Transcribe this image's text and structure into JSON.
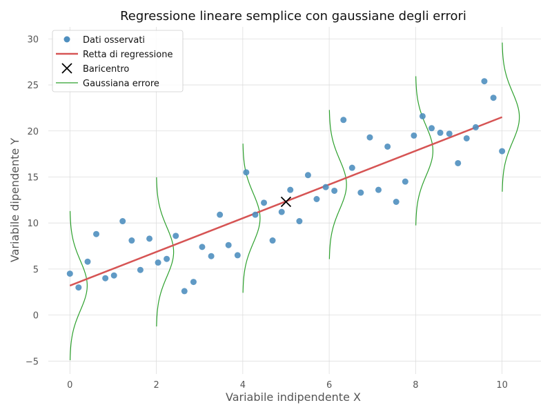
{
  "chart_data": {
    "type": "scatter",
    "title": "Regressione lineare semplice con gaussiane degli errori",
    "xlabel": "Variabile indipendente X",
    "ylabel": "Variabile dipendente Y",
    "xlim": [
      -0.5,
      10.9
    ],
    "ylim": [
      -6.4,
      31.3
    ],
    "xticks": [
      0,
      2,
      4,
      6,
      8,
      10
    ],
    "yticks": [
      -5,
      0,
      5,
      10,
      15,
      20,
      25,
      30
    ],
    "grid": true,
    "legend_position": "top-left",
    "colors": {
      "points": "#4f8fbf",
      "regression": "#d65454",
      "centroid": "#000000",
      "gaussian": "#2ca02c"
    },
    "legend": [
      {
        "label": "Dati osservati",
        "kind": "point"
      },
      {
        "label": "Retta di regressione",
        "kind": "line"
      },
      {
        "label": "Baricentro",
        "kind": "cross"
      },
      {
        "label": "Gaussiana errore",
        "kind": "thin-line"
      }
    ],
    "observed": {
      "name": "Dati osservati",
      "x": [
        0.0,
        0.2,
        0.41,
        0.61,
        0.82,
        1.02,
        1.22,
        1.43,
        1.63,
        1.84,
        2.04,
        2.24,
        2.45,
        2.65,
        2.86,
        3.06,
        3.27,
        3.47,
        3.67,
        3.88,
        4.08,
        4.29,
        4.49,
        4.69,
        4.9,
        5.1,
        5.31,
        5.51,
        5.71,
        5.92,
        6.12,
        6.33,
        6.53,
        6.73,
        6.94,
        7.14,
        7.35,
        7.55,
        7.76,
        7.96,
        8.16,
        8.37,
        8.57,
        8.78,
        8.98,
        9.18,
        9.39,
        9.59,
        9.8,
        10.0
      ],
      "y": [
        4.5,
        3.0,
        5.8,
        8.8,
        4.0,
        4.3,
        10.2,
        8.1,
        4.9,
        8.3,
        5.7,
        6.1,
        8.6,
        2.6,
        3.6,
        7.4,
        6.4,
        10.9,
        7.6,
        6.5,
        15.5,
        10.9,
        12.2,
        8.1,
        11.2,
        13.6,
        10.2,
        15.2,
        12.6,
        13.9,
        13.5,
        21.2,
        16.0,
        13.3,
        19.3,
        13.6,
        18.3,
        12.3,
        14.5,
        19.5,
        21.6,
        20.3,
        19.8,
        19.7,
        16.5,
        19.2,
        20.4,
        25.4,
        23.6,
        17.8
      ]
    },
    "regression": {
      "name": "Retta di regressione",
      "intercept": 3.2,
      "slope": 1.83,
      "x_range": [
        0,
        10
      ]
    },
    "centroid": {
      "name": "Baricentro",
      "x": 5.0,
      "y": 12.3
    },
    "error_gaussians": {
      "name": "Gaussiana errore",
      "x_positions": [
        0,
        2,
        4,
        6,
        8,
        10
      ],
      "sigma": 2.7,
      "peak_width_x": 0.4
    }
  }
}
